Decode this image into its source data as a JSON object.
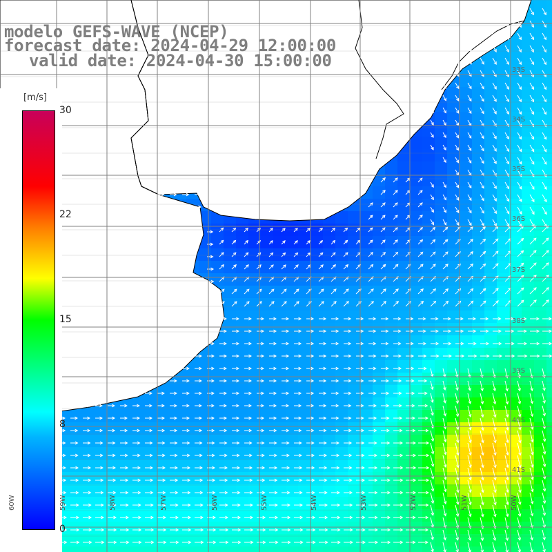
{
  "title": {
    "line1": "modelo GEFS-WAVE (NCEP)",
    "line2": "forecast date: 2024-04-29 12:00:00",
    "line3": "valid date: 2024-04-30 15:00:00"
  },
  "colorbar": {
    "unit": "[m/s]",
    "min": 0,
    "max": 30,
    "ticks": [
      "30",
      "22",
      "15",
      "8",
      "0"
    ],
    "tick_values": [
      30,
      22,
      15,
      8,
      0
    ],
    "colors": [
      "#0000ff",
      "#00b4ff",
      "#00ffff",
      "#00ff00",
      "#ffff00",
      "#ff7f00",
      "#ff0000",
      "#c8005a"
    ]
  },
  "lat_labels": [
    "33S",
    "34S",
    "35S",
    "36S",
    "37S",
    "38S",
    "39S",
    "40S",
    "41S"
  ],
  "lon_labels": [
    "60W",
    "59W",
    "58W",
    "57W",
    "56W",
    "55W",
    "54W",
    "53W",
    "52W",
    "51W",
    "50W"
  ],
  "map_colors": {
    "land": "#ffffff",
    "coastline": "#000000",
    "grid": "#808080",
    "arrow": "#ffffff"
  }
}
